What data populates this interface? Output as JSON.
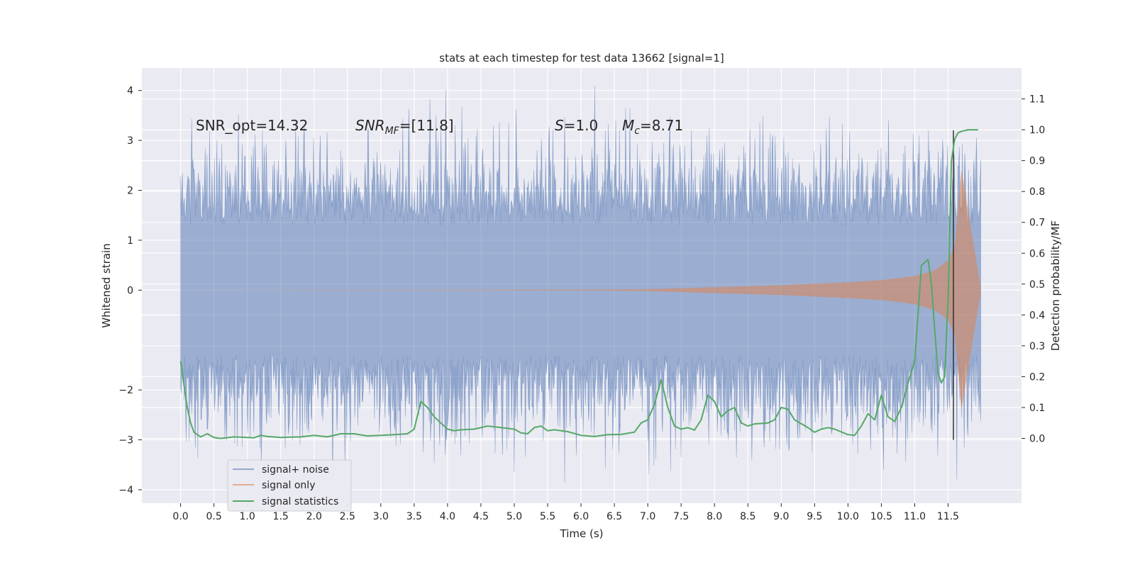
{
  "chart_data": {
    "type": "line",
    "title": "stats at each timestep for test data 13662 [signal=1]",
    "xlabel": "Time (s)",
    "ylabel": "Whitened strain",
    "ylabel_right": "Detection probability/MF",
    "xlim": [
      -0.58,
      12.6
    ],
    "ylim": [
      -4.27,
      4.45
    ],
    "ylim_right": [
      -0.21,
      1.2
    ],
    "x_ticks": [
      "0.0",
      "0.5",
      "1.0",
      "1.5",
      "2.0",
      "2.5",
      "3.0",
      "3.5",
      "4.0",
      "4.5",
      "5.0",
      "5.5",
      "6.0",
      "6.5",
      "7.0",
      "7.5",
      "8.0",
      "8.5",
      "9.0",
      "9.5",
      "10.0",
      "10.5",
      "11.0",
      "11.5"
    ],
    "y_ticks": [
      "4",
      "3",
      "2",
      "1",
      "0",
      "−2",
      "−3",
      "−4"
    ],
    "y_ticks_right": [
      "1.1",
      "1.0",
      "0.9",
      "0.8",
      "0.7",
      "0.6",
      "0.5",
      "0.4",
      "0.3",
      "0.2",
      "0.1",
      "0.0"
    ],
    "grid": true,
    "legend_position": "lower-left",
    "annotations": {
      "snr_opt": "SNR_opt=14.32",
      "snr_mf_main": "SNR",
      "snr_mf_sub": "MF",
      "snr_mf_value": "=[11.8]",
      "s_sym": "S",
      "s_value": "=1.0",
      "mc_sym": "M",
      "mc_sub": "c",
      "mc_value": "=8.71"
    },
    "marker_line_x": 11.58,
    "series": [
      {
        "name": "signal+ noise",
        "color": "#4c72b0",
        "opacity": 0.5,
        "x_range": [
          0.0,
          11.99
        ],
        "noise_std": 0.85,
        "peak_range": [
          -3.9,
          4.1
        ]
      },
      {
        "name": "signal only",
        "color": "#dd8452",
        "opacity": 0.55,
        "envelope_x": [
          0.0,
          6.0,
          7.0,
          8.0,
          9.0,
          10.0,
          10.5,
          11.0,
          11.3,
          11.5,
          11.6,
          11.7,
          11.99
        ],
        "envelope_y": [
          0.0,
          0.01,
          0.02,
          0.06,
          0.1,
          0.16,
          0.2,
          0.28,
          0.4,
          0.6,
          0.9,
          2.4,
          0.05
        ]
      },
      {
        "name": "signal statistics",
        "color": "#55a868",
        "axis": "right",
        "x": [
          0.0,
          0.1,
          0.15,
          0.2,
          0.3,
          0.4,
          0.5,
          0.6,
          0.8,
          1.0,
          1.1,
          1.2,
          1.3,
          1.5,
          1.8,
          2.0,
          2.2,
          2.4,
          2.6,
          2.8,
          3.0,
          3.2,
          3.4,
          3.5,
          3.6,
          3.7,
          3.8,
          3.9,
          4.0,
          4.1,
          4.2,
          4.4,
          4.6,
          4.8,
          5.0,
          5.1,
          5.2,
          5.3,
          5.4,
          5.5,
          5.6,
          5.8,
          6.0,
          6.2,
          6.4,
          6.6,
          6.8,
          6.9,
          7.0,
          7.1,
          7.2,
          7.3,
          7.4,
          7.5,
          7.6,
          7.7,
          7.8,
          7.9,
          8.0,
          8.1,
          8.2,
          8.3,
          8.4,
          8.5,
          8.6,
          8.8,
          8.9,
          9.0,
          9.1,
          9.2,
          9.4,
          9.5,
          9.6,
          9.7,
          9.8,
          10.0,
          10.1,
          10.2,
          10.3,
          10.4,
          10.5,
          10.6,
          10.7,
          10.8,
          10.9,
          11.0,
          11.1,
          11.15,
          11.2,
          11.25,
          11.3,
          11.35,
          11.4,
          11.45,
          11.5,
          11.55,
          11.6,
          11.65,
          11.7,
          11.8,
          11.9,
          11.95
        ],
        "y": [
          0.25,
          0.1,
          0.05,
          0.02,
          0.005,
          0.015,
          0.003,
          0.0,
          0.005,
          0.003,
          0.002,
          0.01,
          0.006,
          0.003,
          0.005,
          0.01,
          0.005,
          0.015,
          0.015,
          0.008,
          0.01,
          0.012,
          0.015,
          0.03,
          0.12,
          0.1,
          0.07,
          0.05,
          0.03,
          0.025,
          0.028,
          0.03,
          0.04,
          0.035,
          0.03,
          0.018,
          0.015,
          0.035,
          0.04,
          0.025,
          0.028,
          0.022,
          0.01,
          0.006,
          0.012,
          0.013,
          0.02,
          0.05,
          0.06,
          0.11,
          0.19,
          0.1,
          0.04,
          0.03,
          0.035,
          0.027,
          0.06,
          0.14,
          0.12,
          0.07,
          0.09,
          0.1,
          0.05,
          0.04,
          0.047,
          0.05,
          0.06,
          0.1,
          0.095,
          0.06,
          0.035,
          0.02,
          0.03,
          0.035,
          0.03,
          0.012,
          0.01,
          0.04,
          0.08,
          0.06,
          0.14,
          0.07,
          0.055,
          0.1,
          0.18,
          0.25,
          0.56,
          0.57,
          0.58,
          0.5,
          0.35,
          0.21,
          0.18,
          0.2,
          0.45,
          0.9,
          0.97,
          0.99,
          0.995,
          1.0,
          1.0,
          1.0
        ]
      }
    ]
  }
}
